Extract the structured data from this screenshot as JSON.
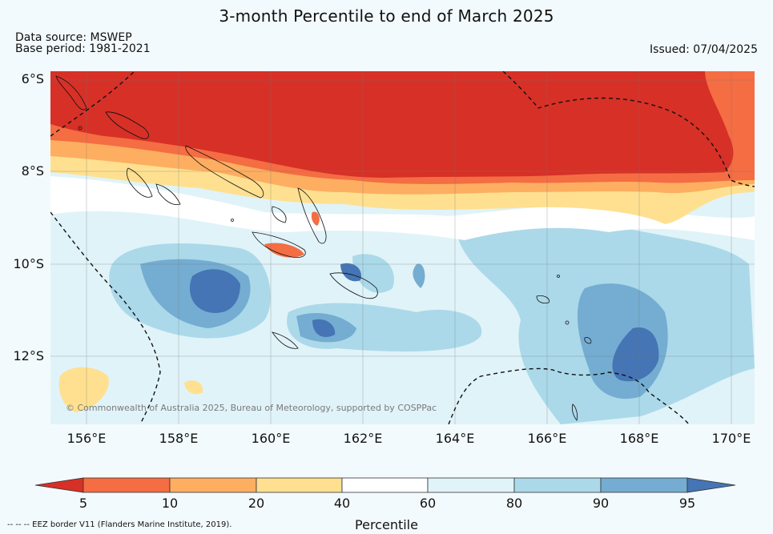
{
  "header": {
    "title": "3-month Percentile to end of March 2025",
    "data_source": "Data source: MSWEP",
    "base_period": "Base period: 1981-2021",
    "issued": "Issued: 07/04/2025"
  },
  "map": {
    "lat_labels": [
      "6°S",
      "8°S",
      "10°S",
      "12°S"
    ],
    "lon_labels": [
      "156°E",
      "158°E",
      "160°E",
      "162°E",
      "164°E",
      "166°E",
      "168°E",
      "170°E"
    ],
    "credit": "© Commonwealth of Australia 2025, Bureau of Meteorology, supported by COSPPac",
    "land_color": "#d73027"
  },
  "colorbar": {
    "label": "Percentile",
    "ticks": [
      "5",
      "10",
      "20",
      "40",
      "60",
      "80",
      "90",
      "95"
    ],
    "colors": [
      "#d73027",
      "#f46d43",
      "#fdae61",
      "#fee090",
      "#ffffff",
      "#e0f3f8",
      "#abd9e9",
      "#74add1",
      "#4575b4"
    ]
  },
  "footer": {
    "eez_note": "--  --  -- EEZ border V11 (Flanders Marine Institute, 2019)."
  }
}
